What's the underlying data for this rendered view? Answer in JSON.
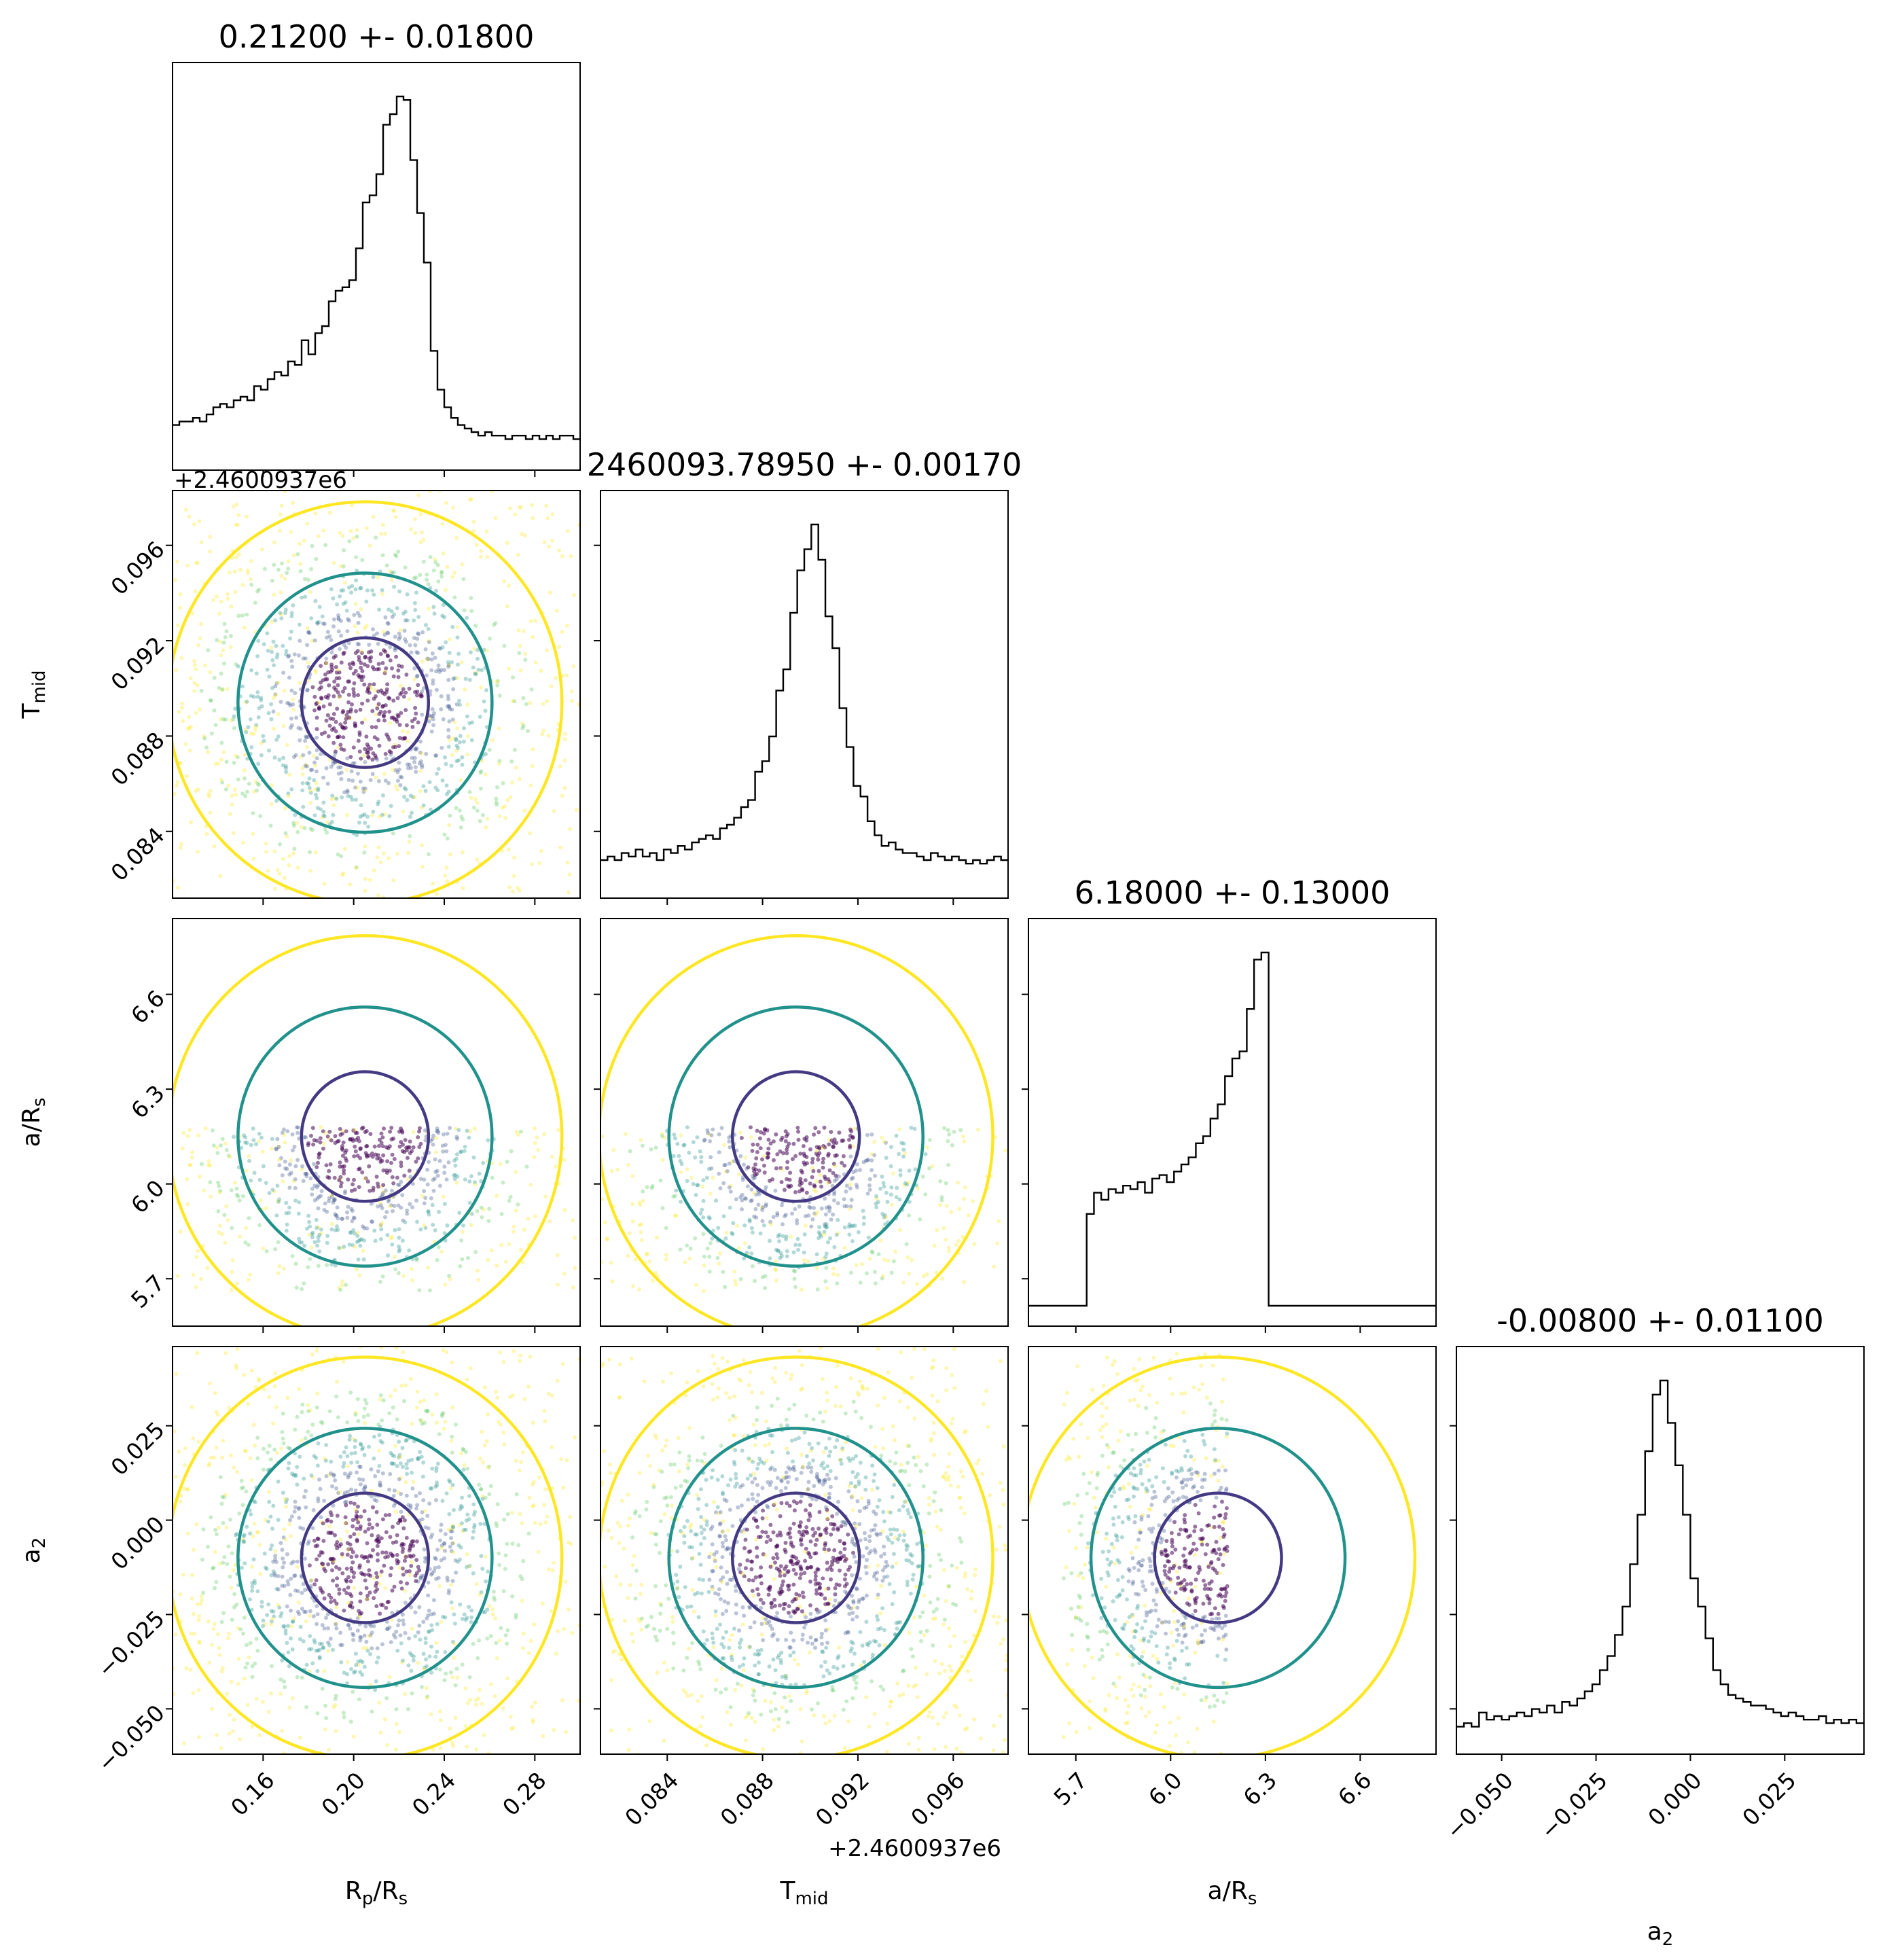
{
  "chart_data": {
    "type": "corner",
    "parameters": [
      {
        "key": "rp",
        "label": "R",
        "sub": "p",
        "suffix": "/R",
        "sub2": "s",
        "range": [
          0.12,
          0.3
        ],
        "ticks": [
          "0.16",
          "0.20",
          "0.24",
          "0.28"
        ],
        "tick_values": [
          0.16,
          0.2,
          0.24,
          0.28
        ],
        "title": "0.21200 +- 0.01800",
        "peak": 0.205,
        "sigma": 0.018
      },
      {
        "key": "tmid",
        "label": "T",
        "sub": "mid",
        "suffix": "",
        "sub2": "",
        "range": [
          0.0812,
          0.0983
        ],
        "ticks": [
          "0.084",
          "0.088",
          "0.092",
          "0.096"
        ],
        "tick_values": [
          0.084,
          0.088,
          0.092,
          0.096
        ],
        "offset_text": "+2.4600937e6",
        "title": "2460093.78950 +- 0.00170",
        "peak": 0.0894,
        "sigma": 0.0017
      },
      {
        "key": "ars",
        "label": "a/R",
        "sub": "s",
        "suffix": "",
        "sub2": "",
        "range": [
          5.55,
          6.84
        ],
        "ticks": [
          "5.7",
          "6.0",
          "6.3",
          "6.6"
        ],
        "tick_values": [
          5.7,
          6.0,
          6.3,
          6.6
        ],
        "title": "6.18000 +- 0.13000",
        "peak": 6.15,
        "sigma": 0.13
      },
      {
        "key": "a2",
        "label": "a",
        "sub": "2",
        "suffix": "",
        "sub2": "",
        "range": [
          -0.062,
          0.046
        ],
        "ticks": [
          "−0.050",
          "−0.025",
          "0.000",
          "0.025"
        ],
        "tick_values": [
          -0.05,
          -0.025,
          0.0,
          0.025
        ],
        "title": "-0.00800 +- 0.01100",
        "peak": -0.01,
        "sigma": 0.011
      }
    ],
    "histograms": {
      "rp": [
        0.07,
        0.08,
        0.08,
        0.09,
        0.08,
        0.1,
        0.12,
        0.13,
        0.12,
        0.14,
        0.15,
        0.14,
        0.18,
        0.17,
        0.2,
        0.22,
        0.21,
        0.25,
        0.24,
        0.31,
        0.27,
        0.33,
        0.35,
        0.42,
        0.45,
        0.46,
        0.48,
        0.57,
        0.7,
        0.72,
        0.78,
        0.92,
        0.95,
        1.0,
        0.99,
        0.82,
        0.67,
        0.53,
        0.28,
        0.17,
        0.12,
        0.09,
        0.07,
        0.06,
        0.05,
        0.04,
        0.05,
        0.04,
        0.04,
        0.03,
        0.04,
        0.04,
        0.03,
        0.04,
        0.03,
        0.04,
        0.03,
        0.04,
        0.04,
        0.03
      ],
      "tmid": [
        0.05,
        0.06,
        0.05,
        0.07,
        0.06,
        0.08,
        0.06,
        0.07,
        0.05,
        0.08,
        0.07,
        0.09,
        0.08,
        0.1,
        0.11,
        0.12,
        0.11,
        0.14,
        0.15,
        0.17,
        0.2,
        0.22,
        0.3,
        0.33,
        0.4,
        0.53,
        0.59,
        0.75,
        0.87,
        0.93,
        1.0,
        0.9,
        0.74,
        0.65,
        0.48,
        0.37,
        0.26,
        0.23,
        0.16,
        0.12,
        0.09,
        0.1,
        0.08,
        0.07,
        0.07,
        0.06,
        0.05,
        0.07,
        0.06,
        0.05,
        0.06,
        0.05,
        0.04,
        0.05,
        0.04,
        0.05,
        0.06,
        0.05
      ],
      "ars": [
        0.0,
        0.0,
        0.0,
        0.0,
        0.0,
        0.0,
        0.0,
        0.0,
        0.26,
        0.32,
        0.3,
        0.33,
        0.32,
        0.34,
        0.33,
        0.35,
        0.32,
        0.36,
        0.37,
        0.35,
        0.38,
        0.4,
        0.42,
        0.46,
        0.48,
        0.53,
        0.57,
        0.65,
        0.7,
        0.72,
        0.84,
        0.98,
        1.0,
        0.0,
        0.0,
        0.0,
        0.0,
        0.0,
        0.0,
        0.0,
        0.0,
        0.0,
        0.0,
        0.0,
        0.0,
        0.0,
        0.0,
        0.0,
        0.0,
        0.0,
        0.0,
        0.0,
        0.0,
        0.0,
        0.0,
        0.0
      ],
      "a2": [
        0.02,
        0.03,
        0.02,
        0.06,
        0.04,
        0.05,
        0.04,
        0.05,
        0.06,
        0.05,
        0.07,
        0.06,
        0.08,
        0.06,
        0.09,
        0.08,
        0.1,
        0.12,
        0.14,
        0.18,
        0.22,
        0.28,
        0.36,
        0.48,
        0.62,
        0.8,
        0.96,
        1.0,
        0.88,
        0.76,
        0.62,
        0.44,
        0.36,
        0.27,
        0.18,
        0.14,
        0.11,
        0.1,
        0.09,
        0.08,
        0.08,
        0.07,
        0.06,
        0.05,
        0.06,
        0.05,
        0.04,
        0.04,
        0.05,
        0.03,
        0.04,
        0.03,
        0.04,
        0.03
      ]
    },
    "contour_levels": [
      "1-sigma",
      "2-sigma",
      "3-sigma"
    ],
    "colors": {
      "level1": "#443a83",
      "level2": "#21918c",
      "level3": "#fde725",
      "points_dense": "#440154",
      "hist": "#000000"
    }
  }
}
